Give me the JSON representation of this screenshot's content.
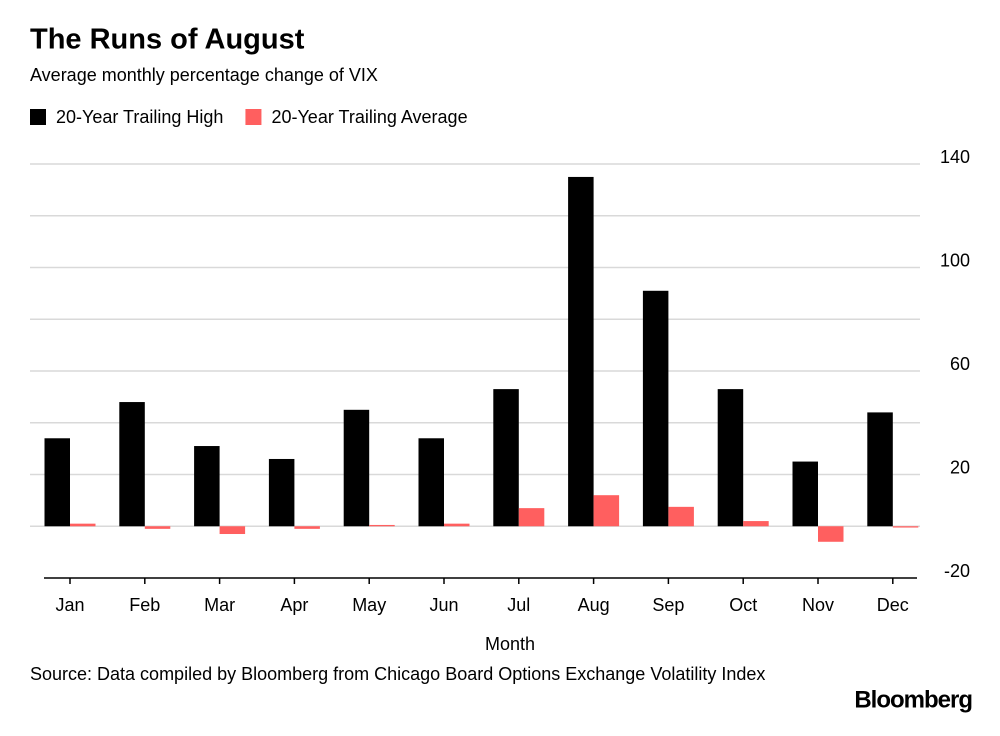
{
  "chart_data": {
    "type": "bar",
    "title": "The Runs of August",
    "subtitle": "Average monthly percentage change of VIX",
    "x_label": "Month",
    "source": "Source: Data compiled by Bloomberg from Chicago Board Options Exchange Volatility Index",
    "brand": "Bloomberg",
    "categories": [
      "Jan",
      "Feb",
      "Mar",
      "Apr",
      "May",
      "Jun",
      "Jul",
      "Aug",
      "Sep",
      "Oct",
      "Nov",
      "Dec"
    ],
    "series": [
      {
        "name": "20-Year Trailing High",
        "color": "#000000",
        "values": [
          34,
          48,
          31,
          26,
          45,
          34,
          53,
          135,
          91,
          53,
          25,
          44
        ]
      },
      {
        "name": "20-Year Trailing Average",
        "color": "#ff5f5f",
        "values": [
          1,
          -1,
          -3,
          -1,
          0.5,
          1,
          7,
          12,
          7.5,
          2,
          -6,
          -0.5
        ]
      }
    ],
    "ylim": [
      -20,
      140
    ],
    "yticks": [
      -20,
      0,
      20,
      40,
      60,
      80,
      100,
      120,
      140
    ],
    "ytick_label_step": 2,
    "grid": true
  }
}
